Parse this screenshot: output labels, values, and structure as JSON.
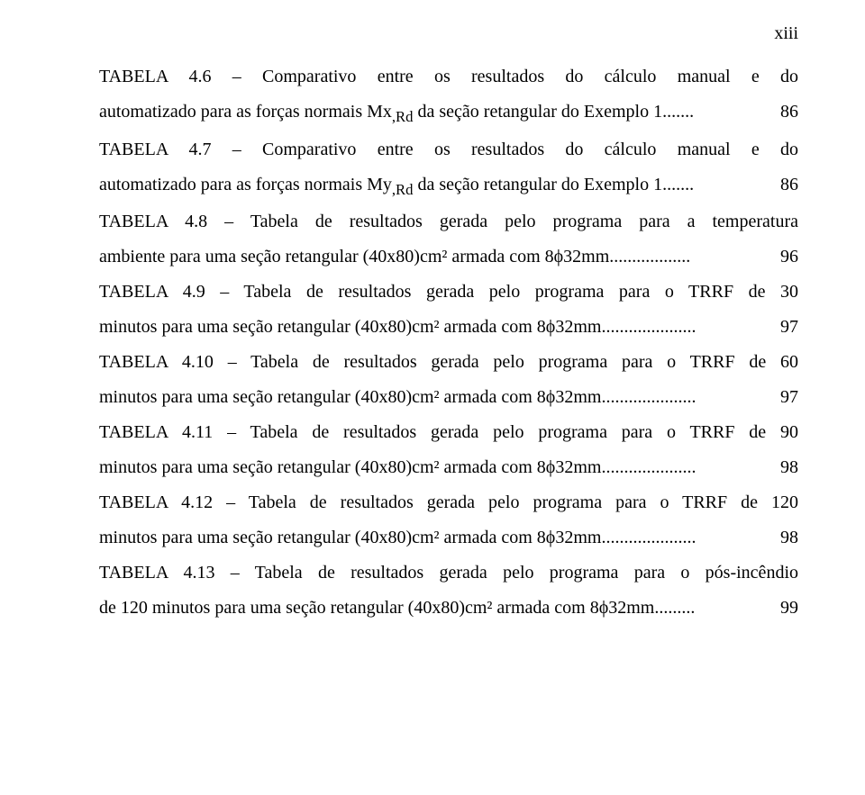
{
  "page_number_label": "xiii",
  "entries": [
    {
      "line1": "TABELA 4.6 – Comparativo entre os resultados do cálculo manual e do",
      "line2": "automatizado para as forças normais Mx,Rd da seção retangular do Exemplo 1.......",
      "page": "86",
      "has_sub": true,
      "sub_text": ",Rd",
      "pre_sub": "automatizado para as forças normais Mx",
      "post_sub": " da seção retangular do Exemplo 1......."
    },
    {
      "line1": "TABELA 4.7 – Comparativo entre os resultados do cálculo manual e do",
      "line2": "automatizado para as forças normais My,Rd da seção retangular do Exemplo 1.......",
      "page": "86",
      "has_sub": true,
      "sub_text": ",Rd",
      "pre_sub": "automatizado para as forças normais My",
      "post_sub": " da seção retangular do Exemplo 1......."
    },
    {
      "line1": "TABELA 4.8 – Tabela de resultados gerada pelo programa para a temperatura",
      "line2": "ambiente para uma seção retangular (40x80)cm² armada com 8ϕ32mm..................",
      "page": "96"
    },
    {
      "line1": "TABELA 4.9 – Tabela de resultados gerada pelo programa para o TRRF de 30",
      "line2": "minutos para uma seção retangular (40x80)cm² armada com 8ϕ32mm.....................",
      "page": "97"
    },
    {
      "line1": "TABELA 4.10 – Tabela de resultados gerada pelo programa para o TRRF de 60",
      "line2": "minutos para uma seção retangular (40x80)cm² armada com 8ϕ32mm.....................",
      "page": "97"
    },
    {
      "line1": "TABELA 4.11 – Tabela de resultados gerada pelo programa para o TRRF de 90",
      "line2": "minutos para uma seção retangular (40x80)cm² armada com 8ϕ32mm.....................",
      "page": "98"
    },
    {
      "line1": "TABELA 4.12 – Tabela de resultados gerada pelo programa para o TRRF de 120",
      "line2": "minutos para uma seção retangular (40x80)cm² armada com 8ϕ32mm.....................",
      "page": "98"
    },
    {
      "line1": "TABELA 4.13 – Tabela de resultados gerada pelo programa para o pós-incêndio",
      "line2": "de 120 minutos para uma seção retangular (40x80)cm² armada com 8ϕ32mm.........",
      "page": "99"
    }
  ]
}
